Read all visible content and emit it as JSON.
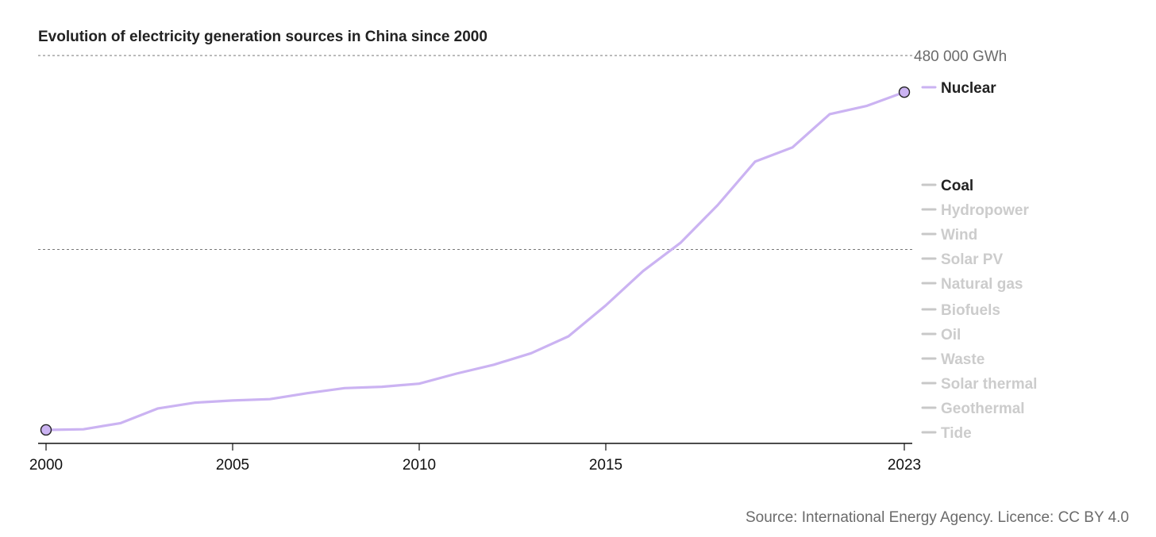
{
  "chart_data": {
    "type": "line",
    "title": "Evolution of electricity generation sources in China since 2000",
    "source": "Source: International Energy Agency. Licence: CC BY 4.0",
    "y_max_label": "480 000 GWh",
    "ylim": [
      0,
      480000
    ],
    "gridlines": [
      240000,
      480000
    ],
    "xlim": [
      2000,
      2023
    ],
    "x_ticks": [
      "2000",
      "2005",
      "2010",
      "2015",
      "2023"
    ],
    "series": [
      {
        "name": "Nuclear",
        "color": "#cbb3f2",
        "highlighted": true,
        "x": [
          2000,
          2001,
          2002,
          2003,
          2004,
          2005,
          2006,
          2007,
          2008,
          2009,
          2010,
          2011,
          2012,
          2013,
          2014,
          2015,
          2016,
          2017,
          2018,
          2019,
          2020,
          2021,
          2022,
          2023
        ],
        "values": [
          16700,
          17500,
          25100,
          43300,
          50500,
          53100,
          54800,
          62100,
          68400,
          70100,
          73900,
          86400,
          97400,
          111600,
          132500,
          170800,
          213300,
          248100,
          295000,
          348700,
          366200,
          407500,
          417800,
          434700
        ]
      }
    ],
    "legend": [
      {
        "name": "Nuclear",
        "state": "active",
        "color": "#cbb3f2"
      },
      {
        "name": "Coal",
        "state": "emphasized",
        "color": "#c8c8c8"
      },
      {
        "name": "Hydropower",
        "state": "muted",
        "color": "#c8c8c8"
      },
      {
        "name": "Wind",
        "state": "muted",
        "color": "#c8c8c8"
      },
      {
        "name": "Solar PV",
        "state": "muted",
        "color": "#c8c8c8"
      },
      {
        "name": "Natural gas",
        "state": "muted",
        "color": "#c8c8c8"
      },
      {
        "name": "Biofuels",
        "state": "muted",
        "color": "#c8c8c8"
      },
      {
        "name": "Oil",
        "state": "muted",
        "color": "#c8c8c8"
      },
      {
        "name": "Waste",
        "state": "muted",
        "color": "#c8c8c8"
      },
      {
        "name": "Solar thermal",
        "state": "muted",
        "color": "#c8c8c8"
      },
      {
        "name": "Geothermal",
        "state": "muted",
        "color": "#c8c8c8"
      },
      {
        "name": "Tide",
        "state": "muted",
        "color": "#c8c8c8"
      }
    ],
    "colors": {
      "active_text": "#222222",
      "muted_text": "#cccccc",
      "axis": "#111111",
      "grid": "#777777",
      "marker_stroke": "#222222"
    }
  }
}
